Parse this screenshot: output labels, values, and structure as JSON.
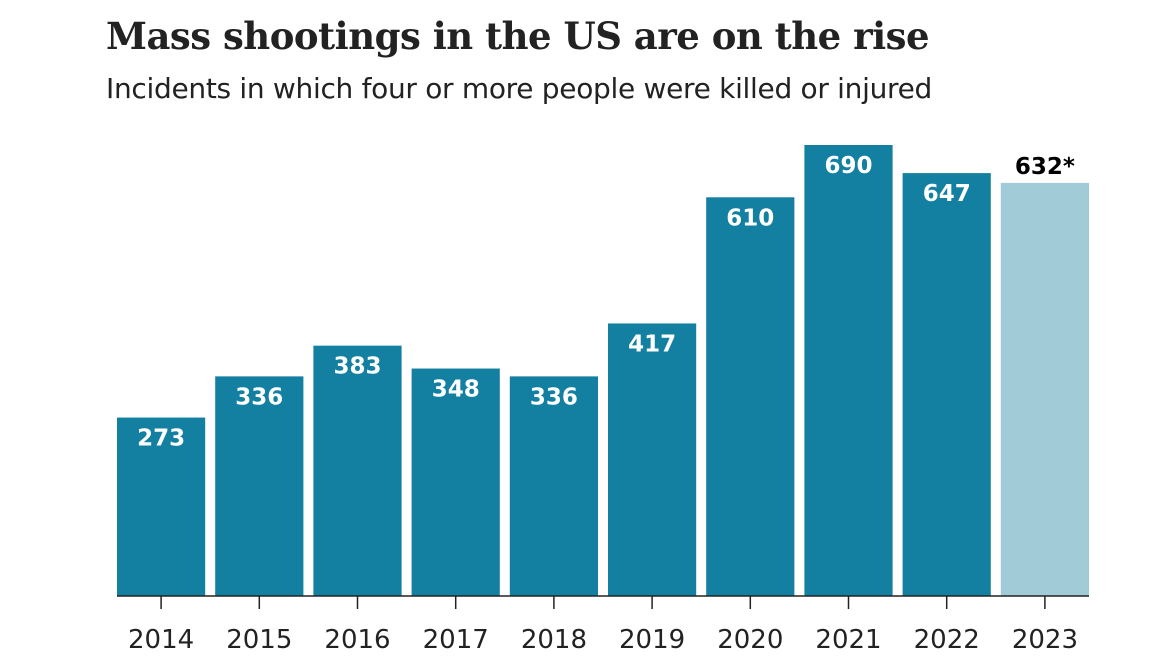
{
  "chart_data": {
    "type": "bar",
    "title": "Mass shootings in the US are on the rise",
    "subtitle": "Incidents in which four or more people were killed or injured",
    "xlabel": "",
    "ylabel": "",
    "categories": [
      "2014",
      "2015",
      "2016",
      "2017",
      "2018",
      "2019",
      "2020",
      "2021",
      "2022",
      "2023"
    ],
    "values": [
      273,
      336,
      383,
      348,
      336,
      417,
      610,
      690,
      647,
      632
    ],
    "labels": [
      "273",
      "336",
      "383",
      "348",
      "336",
      "417",
      "610",
      "690",
      "647",
      "632*"
    ],
    "ylim": [
      0,
      690
    ],
    "grid": false,
    "colors": {
      "bar": "#1380a1",
      "partial": "#a2cbd8",
      "axis": "#222222"
    },
    "highlight_partial_index": 9
  }
}
